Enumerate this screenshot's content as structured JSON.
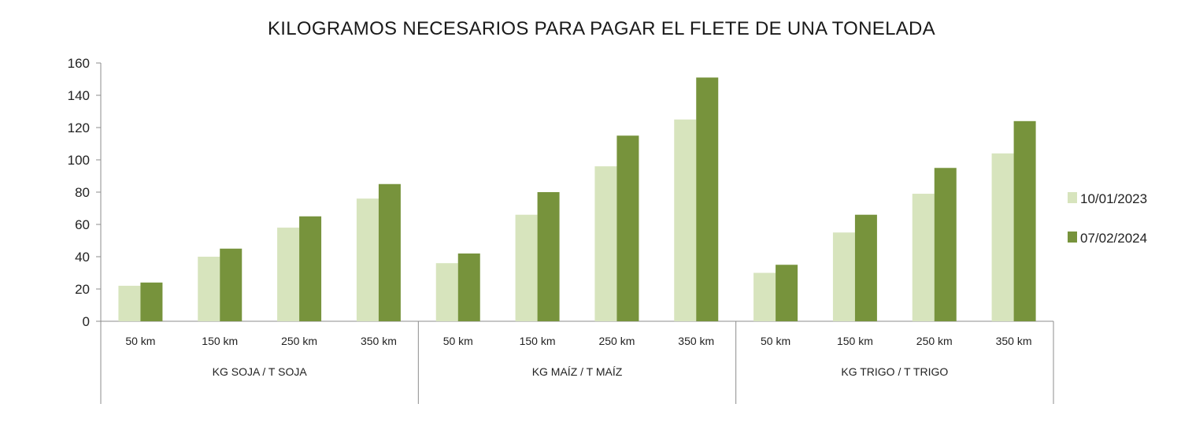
{
  "chart_data": {
    "type": "bar",
    "title": "KILOGRAMOS NECESARIOS PARA PAGAR EL FLETE DE UNA TONELADA",
    "xlabel": "",
    "ylabel": "",
    "ylim": [
      0,
      160
    ],
    "yticks": [
      0,
      20,
      40,
      60,
      80,
      100,
      120,
      140,
      160
    ],
    "grid": false,
    "legend_position": "right",
    "groups": [
      {
        "label": "KG SOJA / T SOJA",
        "categories": [
          "50 km",
          "150 km",
          "250 km",
          "350 km"
        ]
      },
      {
        "label": "KG MAÍZ / T MAÍZ",
        "categories": [
          "50 km",
          "150 km",
          "250 km",
          "350 km"
        ]
      },
      {
        "label": "KG TRIGO / T TRIGO",
        "categories": [
          "50 km",
          "150 km",
          "250 km",
          "350 km"
        ]
      }
    ],
    "series": [
      {
        "name": "10/01/2023",
        "color": "#d7e4bd",
        "values": [
          22,
          40,
          58,
          76,
          36,
          66,
          96,
          125,
          30,
          55,
          79,
          104
        ]
      },
      {
        "name": "07/02/2024",
        "color": "#77933c",
        "values": [
          24,
          45,
          65,
          85,
          42,
          80,
          115,
          151,
          35,
          66,
          95,
          124
        ]
      }
    ]
  }
}
